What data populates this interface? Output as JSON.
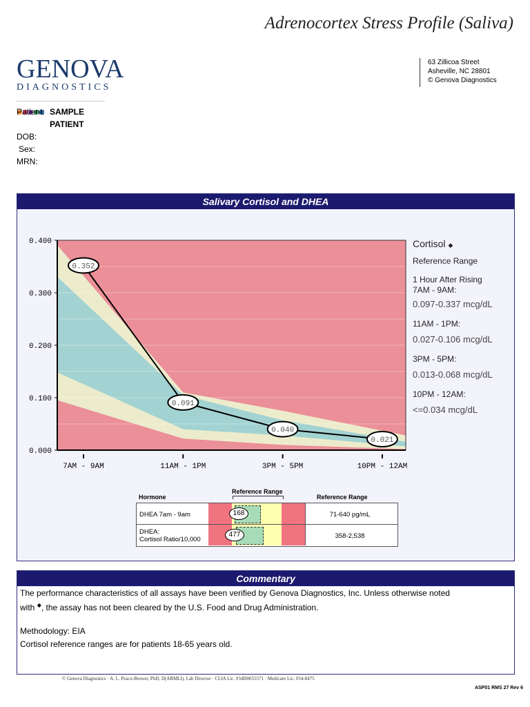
{
  "report_title": "Adrenocortex Stress Profile (Saliva)",
  "logo": {
    "name": "GENOVA",
    "sub": "DIAGNOSTICS",
    "dot_colors": [
      "#f08a2c",
      "#e0406a",
      "#7b3fa0",
      "#1f8a4c",
      "#1666a8"
    ]
  },
  "address": [
    "63 Zillicoa Street",
    "Asheville, NC  28801",
    "© Genova Diagnostics"
  ],
  "patient": {
    "patient_label": "Patient:",
    "name_line1": "SAMPLE",
    "name_line2": "PATIENT",
    "dob_label": "DOB:",
    "sex_label": "Sex:",
    "mrn_label": "MRN:"
  },
  "panel1_title": "Salivary Cortisol and DHEA",
  "chart_data": {
    "type": "line",
    "categories": [
      "7AM - 9AM",
      "11AM - 1PM",
      "3PM - 5PM",
      "10PM - 12AM"
    ],
    "values": [
      0.352,
      0.091,
      0.04,
      0.021
    ],
    "data_labels": [
      "0.352",
      "0.091",
      "0.040",
      "0.021"
    ],
    "ylim": [
      0,
      0.4
    ],
    "yticks": [
      "0.000",
      "0.100",
      "0.200",
      "0.300",
      "0.400"
    ],
    "grid": true,
    "bands": {
      "x": [
        -0.26,
        1,
        2,
        3.24
      ],
      "yellow_top": [
        0.39,
        0.11,
        0.075,
        0.028
      ],
      "green_top": [
        0.33,
        0.105,
        0.057,
        0.016
      ],
      "green_bottom": [
        0.148,
        0.04,
        0.028,
        0.007
      ],
      "yellow_bottom": [
        0.095,
        0.022,
        0.01,
        0.002
      ]
    },
    "colors": {
      "out_of_range": "#eb8f98",
      "borderline": "#ececcc",
      "in_range": "#a3d2d2",
      "line": "#000000"
    }
  },
  "legend": {
    "title": "Cortisol",
    "marker": "◆",
    "ref_label": "Reference Range",
    "groups": [
      {
        "l1": "1 Hour After Rising",
        "l2": "7AM - 9AM:",
        "range": "0.097-0.337 mcg/dL"
      },
      {
        "l1": "11AM - 1PM:",
        "range": "0.027-0.106 mcg/dL"
      },
      {
        "l1": "3PM - 5PM:",
        "range": "0.013-0.068 mcg/dL"
      },
      {
        "l1": "10PM - 12AM:",
        "range": "<=0.034 mcg/dL"
      }
    ]
  },
  "dhea_table": {
    "h_hormone": "Hormone",
    "h_bar": "Reference Range",
    "h_range": "Reference Range",
    "rows": [
      {
        "l1": "DHEA 7am - 9am",
        "l2": "",
        "value": "168",
        "range": "71-640 pg/mL"
      },
      {
        "l1": "DHEA:",
        "l2": "Cortisol Ratio/10,000",
        "value": "477",
        "range": "358-2,538"
      }
    ]
  },
  "commentary": {
    "title": "Commentary",
    "p1a": "The performance characteristics of all assays have been verified by Genova Diagnostics, Inc.   Unless otherwise noted",
    "p1b_pre": "with ",
    "p1b_mark": "◆",
    "p1b_post": ", the assay has not been cleared by the U.S. Food and Drug Administration.",
    "p2": "Methodology: EIA",
    "p3": "Cortisol reference ranges are for patients 18-65 years old."
  },
  "footer": "© Genova Diagnostics · A. L. Peace-Brewer, PhD, D(ABMLI), Lab Director · CLIA Lic. #34D0655571 · Medicare Lic. #34-8475",
  "form_code": "ASP01 RMS 27 Rev 6"
}
